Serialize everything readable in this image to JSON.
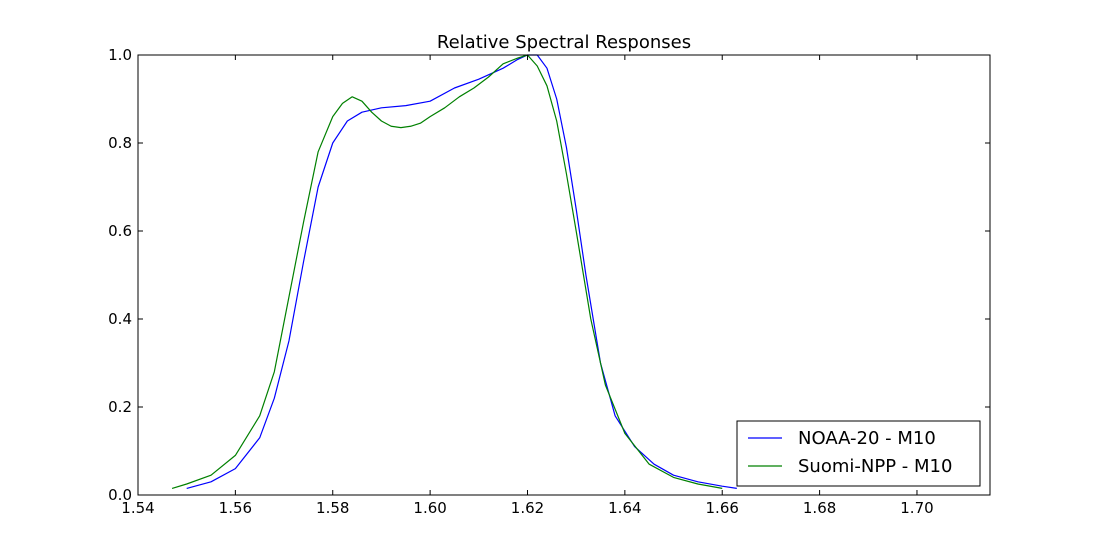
{
  "chart_data": {
    "type": "line",
    "title": "Relative Spectral Responses",
    "xlabel": "",
    "ylabel": "",
    "xlim": [
      1.54,
      1.715
    ],
    "ylim": [
      0.0,
      1.0
    ],
    "xticks": [
      "1.54",
      "1.56",
      "1.58",
      "1.60",
      "1.62",
      "1.64",
      "1.66",
      "1.68",
      "1.70"
    ],
    "yticks": [
      "0.0",
      "0.2",
      "0.4",
      "0.6",
      "0.8",
      "1.0"
    ],
    "grid": false,
    "legend_position": "lower-right",
    "series": [
      {
        "name": "NOAA-20 - M10",
        "color": "#0000ff",
        "x": [
          1.55,
          1.555,
          1.56,
          1.565,
          1.568,
          1.571,
          1.574,
          1.577,
          1.58,
          1.583,
          1.586,
          1.59,
          1.595,
          1.6,
          1.605,
          1.61,
          1.615,
          1.618,
          1.62,
          1.622,
          1.624,
          1.626,
          1.628,
          1.63,
          1.632,
          1.635,
          1.638,
          1.642,
          1.646,
          1.65,
          1.655,
          1.66,
          1.663
        ],
        "y": [
          0.015,
          0.03,
          0.06,
          0.13,
          0.22,
          0.35,
          0.53,
          0.7,
          0.8,
          0.85,
          0.87,
          0.88,
          0.885,
          0.895,
          0.925,
          0.945,
          0.97,
          0.99,
          1.0,
          1.0,
          0.97,
          0.9,
          0.79,
          0.65,
          0.5,
          0.3,
          0.18,
          0.11,
          0.07,
          0.045,
          0.03,
          0.02,
          0.015
        ]
      },
      {
        "name": "Suomi-NPP - M10",
        "color": "#008000",
        "x": [
          1.547,
          1.55,
          1.555,
          1.56,
          1.565,
          1.568,
          1.571,
          1.574,
          1.577,
          1.58,
          1.582,
          1.584,
          1.586,
          1.588,
          1.59,
          1.592,
          1.594,
          1.596,
          1.598,
          1.6,
          1.603,
          1.606,
          1.609,
          1.612,
          1.615,
          1.618,
          1.62,
          1.622,
          1.624,
          1.626,
          1.628,
          1.63,
          1.633,
          1.636,
          1.64,
          1.645,
          1.65,
          1.655,
          1.66
        ],
        "y": [
          0.015,
          0.025,
          0.045,
          0.09,
          0.18,
          0.28,
          0.45,
          0.62,
          0.78,
          0.86,
          0.89,
          0.905,
          0.895,
          0.87,
          0.85,
          0.838,
          0.835,
          0.838,
          0.845,
          0.86,
          0.88,
          0.905,
          0.925,
          0.95,
          0.98,
          0.993,
          1.0,
          0.975,
          0.93,
          0.85,
          0.73,
          0.6,
          0.4,
          0.25,
          0.14,
          0.07,
          0.04,
          0.025,
          0.015
        ]
      }
    ]
  }
}
